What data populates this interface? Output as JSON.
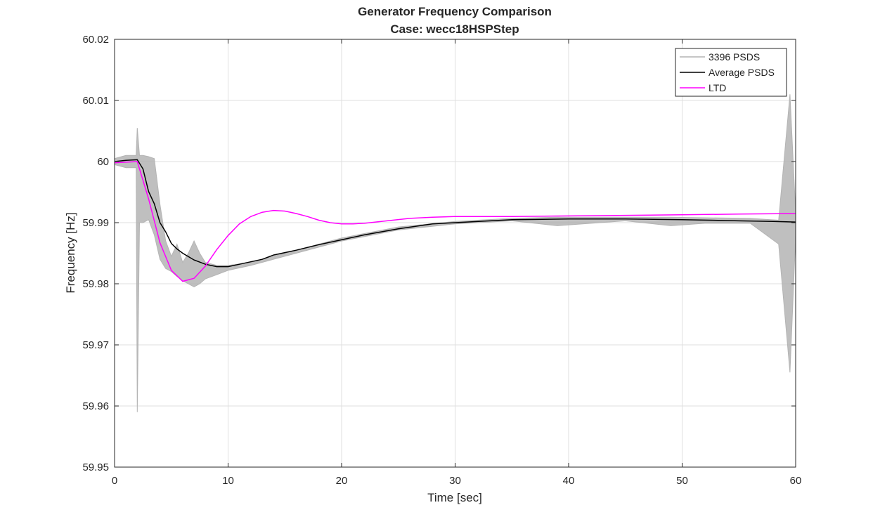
{
  "chart_data": {
    "type": "line",
    "title": "Generator Frequency Comparison",
    "subtitle": "Case: wecc18HSPStep",
    "xlabel": "Time [sec]",
    "ylabel": "Frequency [Hz]",
    "xlim": [
      0,
      60
    ],
    "ylim": [
      59.95,
      60.02
    ],
    "xticks": [
      0,
      10,
      20,
      30,
      40,
      50,
      60
    ],
    "xtick_labels": [
      "0",
      "10",
      "20",
      "30",
      "40",
      "50",
      "60"
    ],
    "yticks": [
      59.95,
      59.96,
      59.97,
      59.98,
      59.99,
      60,
      60.01,
      60.02
    ],
    "ytick_labels": [
      "59.95",
      "59.96",
      "59.97",
      "59.98",
      "59.99",
      "60",
      "60.01",
      "60.02"
    ],
    "grid": true,
    "legend_position": "top-right",
    "series": [
      {
        "name": "3396 PSDS",
        "color": "#b4b4b4",
        "band": true,
        "x": [
          0,
          1,
          1.9,
          2.0,
          2.2,
          2.5,
          3,
          3.5,
          4,
          4.5,
          5,
          5.5,
          6,
          6.5,
          7,
          7.5,
          8,
          9,
          10,
          12,
          14,
          16,
          20,
          25,
          30,
          35,
          39,
          45,
          49,
          52,
          56,
          58.5,
          59.5,
          60
        ],
        "upper": [
          60.0005,
          60.001,
          60.001,
          60.0055,
          60.001,
          60.001,
          60.0008,
          60.0005,
          59.993,
          59.987,
          59.9845,
          59.9865,
          59.9835,
          59.985,
          59.987,
          59.985,
          59.9835,
          59.983,
          59.983,
          59.9835,
          59.9845,
          59.9855,
          59.9875,
          59.9893,
          59.9902,
          59.9907,
          59.9909,
          59.9909,
          59.9909,
          59.9908,
          59.9907,
          59.9904,
          60.011,
          59.9915
        ],
        "lower": [
          59.9995,
          59.999,
          59.999,
          59.959,
          59.99,
          59.99,
          59.9905,
          59.988,
          59.984,
          59.9825,
          59.982,
          59.9812,
          59.9805,
          59.98,
          59.9795,
          59.98,
          59.9808,
          59.9815,
          59.9822,
          59.983,
          59.984,
          59.985,
          59.987,
          59.9888,
          59.9898,
          59.9903,
          59.9895,
          59.9903,
          59.9895,
          59.9899,
          59.9899,
          59.9865,
          59.9655,
          59.988
        ]
      },
      {
        "name": "Average PSDS",
        "color": "#000000",
        "x": [
          0,
          1,
          2,
          2.5,
          3,
          3.5,
          4,
          4.5,
          5,
          5.5,
          6,
          7,
          8,
          9,
          10,
          11,
          12,
          13,
          14,
          15,
          16,
          18,
          20,
          22,
          25,
          28,
          30,
          35,
          40,
          45,
          50,
          55,
          58,
          60
        ],
        "y": [
          60.0,
          60.0002,
          60.0003,
          59.9988,
          59.9951,
          59.9931,
          59.99,
          59.9885,
          59.9866,
          59.9857,
          59.985,
          59.9839,
          59.9832,
          59.9828,
          59.9828,
          59.9832,
          59.9836,
          59.984,
          59.9847,
          59.9851,
          59.9855,
          59.9864,
          59.9872,
          59.988,
          59.989,
          59.9898,
          59.99,
          59.9905,
          59.9906,
          59.9906,
          59.9905,
          59.9903,
          59.9902,
          59.9901
        ]
      },
      {
        "name": "LTD",
        "color": "#ff00ff",
        "x": [
          0,
          2,
          3,
          4,
          5,
          6,
          7,
          8,
          9,
          10,
          11,
          12,
          13,
          14,
          15,
          16,
          17,
          18,
          19,
          20,
          21,
          22,
          24,
          26,
          28,
          30,
          35,
          40,
          45,
          50,
          55,
          60
        ],
        "y": [
          59.9998,
          60.0,
          59.9939,
          59.9867,
          59.9822,
          59.9804,
          59.9809,
          59.9829,
          59.9856,
          59.9879,
          59.9898,
          59.991,
          59.9917,
          59.992,
          59.9919,
          59.9915,
          59.991,
          59.9904,
          59.99,
          59.9898,
          59.9898,
          59.9899,
          59.9903,
          59.9907,
          59.9909,
          59.991,
          59.991,
          59.9911,
          59.9912,
          59.9913,
          59.9914,
          59.9915
        ]
      }
    ]
  }
}
